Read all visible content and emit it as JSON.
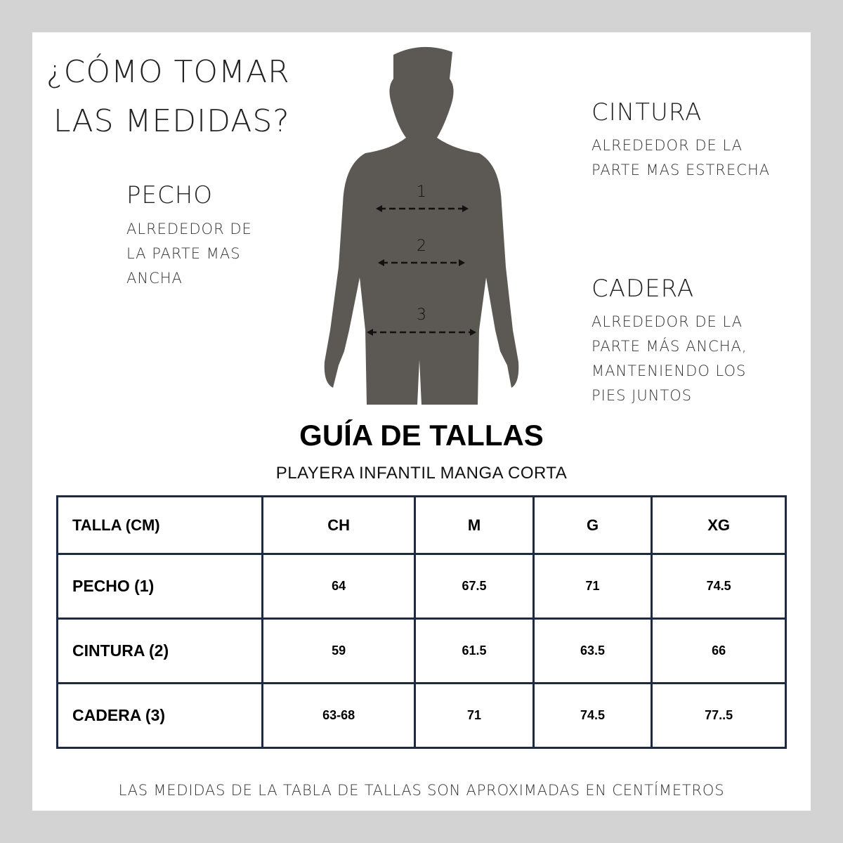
{
  "heading": [
    "¿CÓMO TOMAR",
    "LAS MEDIDAS?"
  ],
  "pecho": {
    "title": "PECHO",
    "desc": [
      "ALREDEDOR DE",
      "LA PARTE MAS",
      "ANCHA"
    ]
  },
  "cintura": {
    "title": "CINTURA",
    "desc": [
      "ALREDEDOR DE LA",
      "PARTE MAS ESTRECHA"
    ]
  },
  "cadera": {
    "title": "CADERA",
    "desc": [
      "ALREDEDOR DE LA",
      "PARTE MÁS ANCHA,",
      "MANTENIENDO LOS",
      "PIES JUNTOS"
    ]
  },
  "figure": {
    "markers": [
      "1",
      "2",
      "3"
    ],
    "color": "#5c5955"
  },
  "guide": {
    "title": "GUÍA DE TALLAS",
    "subtitle": "PLAYERA INFANTIL MANGA CORTA"
  },
  "table": {
    "headers": [
      "TALLA (CM)",
      "CH",
      "M",
      "G",
      "XG"
    ],
    "rows": [
      [
        "PECHO (1)",
        "64",
        "67.5",
        "71",
        "74.5"
      ],
      [
        "CINTURA (2)",
        "59",
        "61.5",
        "63.5",
        "66"
      ],
      [
        "CADERA (3)",
        "63-68",
        "71",
        "74.5",
        "77..5"
      ]
    ]
  },
  "footer": "LAS MEDIDAS DE LA TABLA DE TALLAS SON APROXIMADAS EN CENTÍMETROS"
}
